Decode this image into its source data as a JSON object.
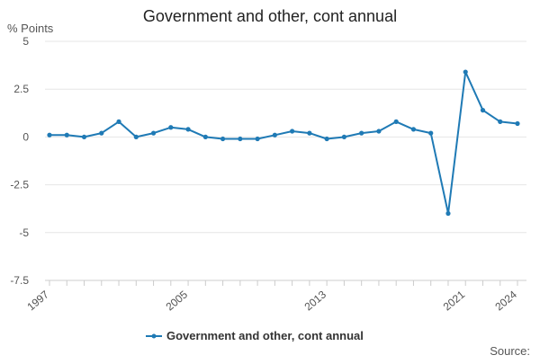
{
  "chart_data": {
    "type": "line",
    "title": "Government and other, cont annual",
    "ylabel": "% Points",
    "xlabel": "",
    "ylim": [
      -7.5,
      5
    ],
    "xlim": [
      1997,
      2024
    ],
    "yticks": [
      5,
      2.5,
      0,
      -2.5,
      -5,
      -7.5
    ],
    "ytick_labels": [
      "5",
      "2.5",
      "0",
      "-2.5",
      "-5",
      "-7.5"
    ],
    "xtick_labels": [
      "1997",
      "2005",
      "2013",
      "2021",
      "2024"
    ],
    "grid": true,
    "legend_position": "bottom",
    "series": [
      {
        "name": "Government and other, cont annual",
        "color": "#1f7ab5",
        "x": [
          1997,
          1998,
          1999,
          2000,
          2001,
          2002,
          2003,
          2004,
          2005,
          2006,
          2007,
          2008,
          2009,
          2010,
          2011,
          2012,
          2013,
          2014,
          2015,
          2016,
          2017,
          2018,
          2019,
          2020,
          2021,
          2022,
          2023,
          2024
        ],
        "values": [
          0.1,
          0.1,
          0.0,
          0.2,
          0.8,
          0.0,
          0.2,
          0.5,
          0.4,
          0.0,
          -0.1,
          -0.1,
          -0.1,
          0.1,
          0.3,
          0.2,
          -0.1,
          0.0,
          0.2,
          0.3,
          0.8,
          0.4,
          0.2,
          -4.0,
          3.4,
          1.4,
          0.8,
          0.7
        ]
      }
    ]
  },
  "footer": {
    "source_label": "Source:"
  }
}
